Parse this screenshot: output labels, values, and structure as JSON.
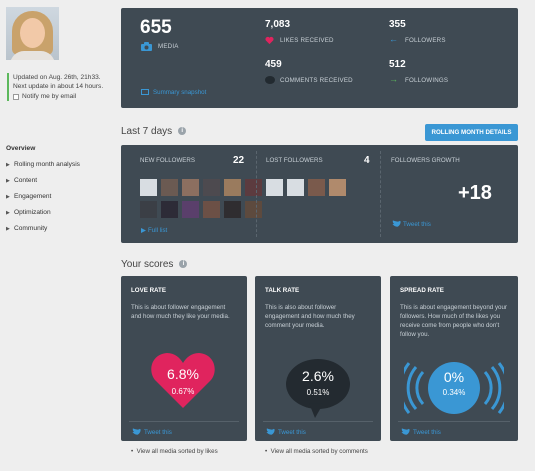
{
  "profile": {
    "updated": "Updated on Aug. 26th, 21h33.",
    "next_update": "Next update in about 14 hours.",
    "notify": "Notify me by email"
  },
  "nav": {
    "items": [
      {
        "label": "Overview",
        "active": true
      },
      {
        "label": "Rolling month analysis"
      },
      {
        "label": "Content"
      },
      {
        "label": "Engagement"
      },
      {
        "label": "Optimization"
      },
      {
        "label": "Community"
      }
    ]
  },
  "summary": {
    "media_count": "655",
    "media_label": "MEDIA",
    "likes_count": "7,083",
    "likes_label": "LIKES RECEIVED",
    "followers_count": "355",
    "followers_label": "FOLLOWERS",
    "comments_count": "459",
    "comments_label": "COMMENTS RECEIVED",
    "followings_count": "512",
    "followings_label": "FOLLOWINGS",
    "snapshot_link": "Summary snapshot"
  },
  "last7": {
    "title": "Last 7 days",
    "rolling_button": "ROLLING MONTH DETAILS",
    "new_followers_label": "NEW FOLLOWERS",
    "new_followers_count": "22",
    "lost_followers_label": "LOST FOLLOWERS",
    "lost_followers_count": "4",
    "growth_label": "FOLLOWERS GROWTH",
    "growth_value": "+18",
    "full_list": "Full list",
    "tweet": "Tweet this"
  },
  "scores": {
    "title": "Your scores",
    "like": {
      "title": "LOVE RATE",
      "desc": "This is about follower engagement and how much they like your media.",
      "main": "6.8%",
      "sub": "0.67%",
      "tweet": "Tweet this",
      "below": "View all media sorted by likes"
    },
    "talk": {
      "title": "TALK RATE",
      "desc": "This is also about follower engagement and how much they comment your media.",
      "main": "2.6%",
      "sub": "0.51%",
      "tweet": "Tweet this",
      "below": "View all media sorted by comments"
    },
    "spread": {
      "title": "SPREAD RATE",
      "desc": "This is about engagement beyond your followers. How much of the likes you receive come from people who don't follow you.",
      "main": "0%",
      "sub": "0.34%",
      "tweet": "Tweet this"
    }
  },
  "colors": {
    "panel": "#3f4a53",
    "accent_blue": "#3a97d4",
    "heart": "#e0245e",
    "green_arrow": "#5cb85c"
  }
}
